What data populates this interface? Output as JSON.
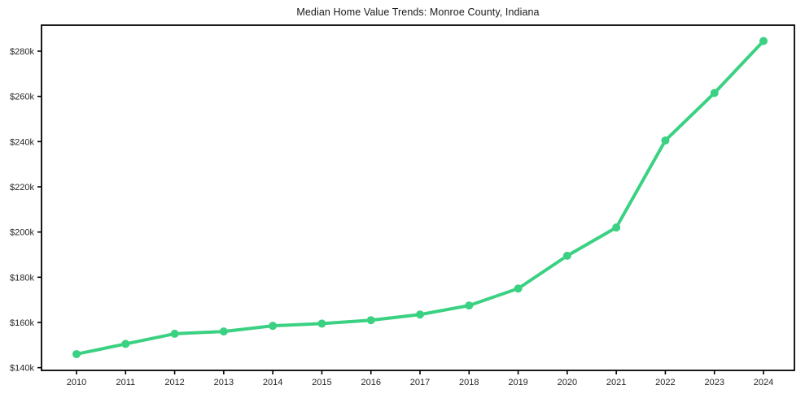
{
  "chart_data": {
    "type": "line",
    "title": "Median Home Value Trends: Monroe County, Indiana",
    "x": [
      2010,
      2011,
      2012,
      2013,
      2014,
      2015,
      2016,
      2017,
      2018,
      2019,
      2020,
      2021,
      2022,
      2023,
      2024
    ],
    "x_tick_labels": [
      "2010",
      "2011",
      "2012",
      "2013",
      "2014",
      "2015",
      "2016",
      "2017",
      "2018",
      "2019",
      "2020",
      "2021",
      "2022",
      "2023",
      "2024"
    ],
    "series": [
      {
        "values_thousands_usd": [
          146,
          150.5,
          155,
          156,
          158.5,
          159.5,
          161,
          163.5,
          167.5,
          175,
          189.5,
          202,
          240.5,
          261.5,
          284.5
        ],
        "color": "#3bd182",
        "marker": "circle"
      }
    ],
    "y_ticks": [
      140,
      160,
      180,
      200,
      220,
      240,
      260,
      280
    ],
    "y_tick_labels": [
      "$140k",
      "$160k",
      "$180k",
      "$200k",
      "$220k",
      "$240k",
      "$260k",
      "$280k"
    ],
    "ylim": [
      138.8,
      291.5
    ],
    "xlabel": "",
    "ylabel": "",
    "grid": false,
    "legend": "none",
    "axis_color": "#000000",
    "text_color": "#262626",
    "title_color": "#1a1a1a",
    "background_color": "#ffffff",
    "line_width": 4,
    "marker_radius": 5
  }
}
